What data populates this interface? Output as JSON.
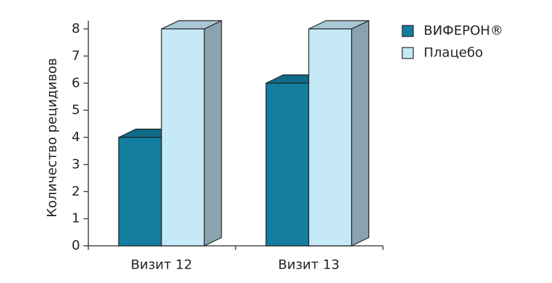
{
  "chart_data": {
    "type": "bar3d",
    "ylabel": "Количество рецидивов",
    "categories": [
      "Визит 12",
      "Визит 13"
    ],
    "series": [
      {
        "name": "ВИФЕРОН®",
        "color": "#137ea0",
        "values": [
          4,
          6
        ]
      },
      {
        "name": "Плацебо",
        "color": "#c6e9f8",
        "values": [
          8,
          8
        ]
      }
    ],
    "ylim": [
      0,
      8
    ],
    "yticks": [
      0,
      1,
      2,
      3,
      4,
      5,
      6,
      7,
      8
    ],
    "legend": "right"
  }
}
